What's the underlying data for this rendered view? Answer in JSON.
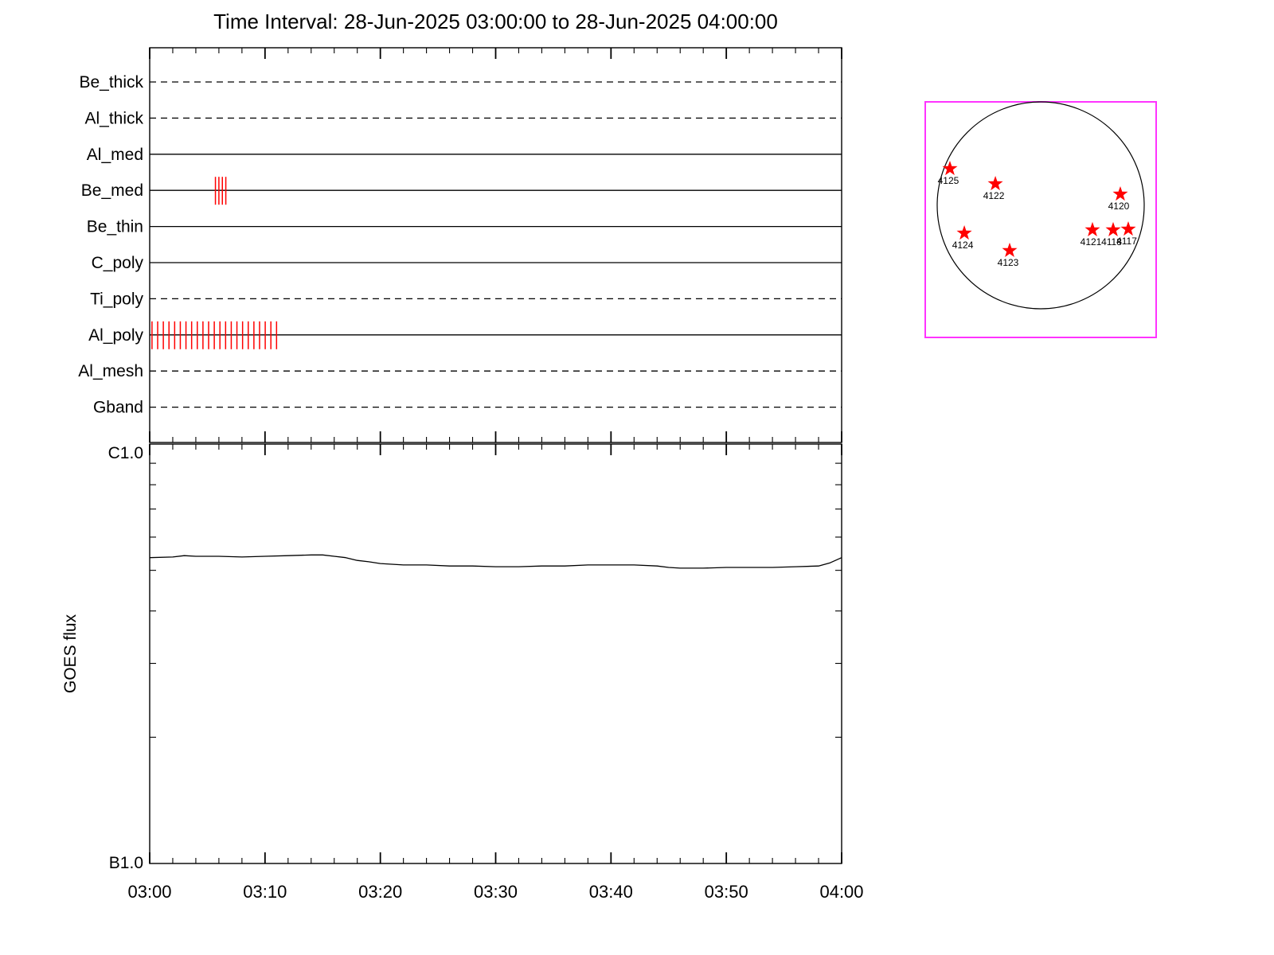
{
  "title": "Time Interval: 28-Jun-2025 03:00:00 to 28-Jun-2025 04:00:00",
  "chart_data": [
    {
      "id": "xrt_filter_timeline",
      "type": "timeline",
      "x_axis": {
        "range_minutes": [
          0,
          60
        ],
        "start_label": "03:00",
        "end_label": "04:00",
        "major_tick_minutes": 10,
        "minor_tick_minutes": 2
      },
      "mark_color": "#ff0000",
      "rows": [
        {
          "label": "Be_thick",
          "line_style": "dashed",
          "marks": []
        },
        {
          "label": "Al_thick",
          "line_style": "dashed",
          "marks": []
        },
        {
          "label": "Al_med",
          "line_style": "solid",
          "marks": []
        },
        {
          "label": "Be_med",
          "line_style": "solid",
          "marks": [
            {
              "start_min": 5.7,
              "end_min": 6.6,
              "ticks": 4
            }
          ]
        },
        {
          "label": "Be_thin",
          "line_style": "solid",
          "marks": []
        },
        {
          "label": "C_poly",
          "line_style": "solid",
          "marks": []
        },
        {
          "label": "Ti_poly",
          "line_style": "dashed",
          "marks": []
        },
        {
          "label": "Al_poly",
          "line_style": "solid",
          "marks": [
            {
              "start_min": 0.2,
              "end_min": 11.0,
              "ticks": 23
            }
          ]
        },
        {
          "label": "Al_mesh",
          "line_style": "dashed",
          "marks": []
        },
        {
          "label": "Gband",
          "line_style": "dashed",
          "marks": []
        }
      ]
    },
    {
      "id": "goes_flux",
      "type": "line",
      "ylabel": "GOES flux",
      "y_axis": {
        "scale": "log",
        "top_label": "C1.0",
        "bottom_label": "B1.0"
      },
      "x_tick_labels": [
        "03:00",
        "03:10",
        "03:20",
        "03:30",
        "03:40",
        "03:50",
        "04:00"
      ],
      "series": [
        {
          "name": "GOES flux",
          "x_minutes": [
            0,
            2,
            3,
            4,
            6,
            8,
            10,
            12,
            14,
            15,
            16,
            17,
            18,
            19,
            20,
            22,
            24,
            26,
            28,
            30,
            32,
            34,
            36,
            38,
            40,
            42,
            44,
            45,
            46,
            48,
            50,
            52,
            54,
            56,
            58,
            59,
            60
          ],
          "flux_b_units": [
            5.36,
            5.38,
            5.42,
            5.4,
            5.4,
            5.38,
            5.4,
            5.42,
            5.44,
            5.44,
            5.4,
            5.36,
            5.28,
            5.24,
            5.19,
            5.15,
            5.15,
            5.12,
            5.12,
            5.1,
            5.1,
            5.12,
            5.12,
            5.15,
            5.15,
            5.15,
            5.12,
            5.08,
            5.06,
            5.06,
            5.08,
            5.08,
            5.08,
            5.1,
            5.12,
            5.21,
            5.36
          ]
        }
      ]
    },
    {
      "id": "solar_disk_map",
      "type": "scatter",
      "marker_color": "#ff0000",
      "border_color": "#ff33ff",
      "active_regions": [
        {
          "label": "4125",
          "x": -0.877,
          "y": 0.354
        },
        {
          "label": "4122",
          "x": -0.438,
          "y": 0.208
        },
        {
          "label": "4120",
          "x": 0.769,
          "y": 0.108
        },
        {
          "label": "4124",
          "x": -0.738,
          "y": -0.269
        },
        {
          "label": "4123",
          "x": -0.3,
          "y": -0.438
        },
        {
          "label": "4121",
          "x": 0.5,
          "y": -0.238
        },
        {
          "label": "4118",
          "x": 0.7,
          "y": -0.238
        },
        {
          "label": "4117",
          "x": 0.846,
          "y": -0.231
        }
      ]
    }
  ]
}
